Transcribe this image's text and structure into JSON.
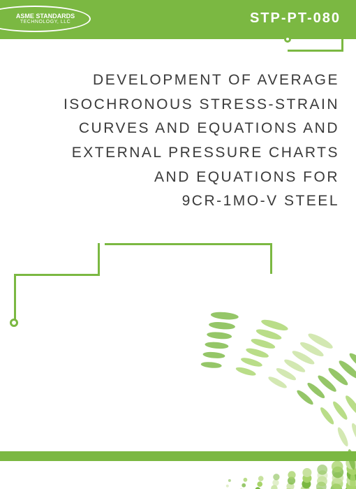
{
  "header": {
    "logo_line1": "ASME STANDARDS",
    "logo_line2": "TECHNOLOGY, LLC",
    "doc_code": "STP-PT-080"
  },
  "title": {
    "line1": "DEVELOPMENT OF AVERAGE",
    "line2": "ISOCHRONOUS STRESS-STRAIN",
    "line3": "CURVES AND EQUATIONS AND",
    "line4": "EXTERNAL PRESSURE CHARTS",
    "line5": "AND EQUATIONS FOR",
    "line6": "9CR-1MO-V STEEL"
  },
  "colors": {
    "brand_green": "#7bb842",
    "green_light": "#a8d46a",
    "text_dark": "#3a3a3a",
    "bg": "#ffffff"
  },
  "decoration": {
    "type": "dotted-swirl",
    "dot_count": 200,
    "dot_colors": [
      "#7bb842",
      "#a8d46a",
      "#c8e29f"
    ]
  }
}
